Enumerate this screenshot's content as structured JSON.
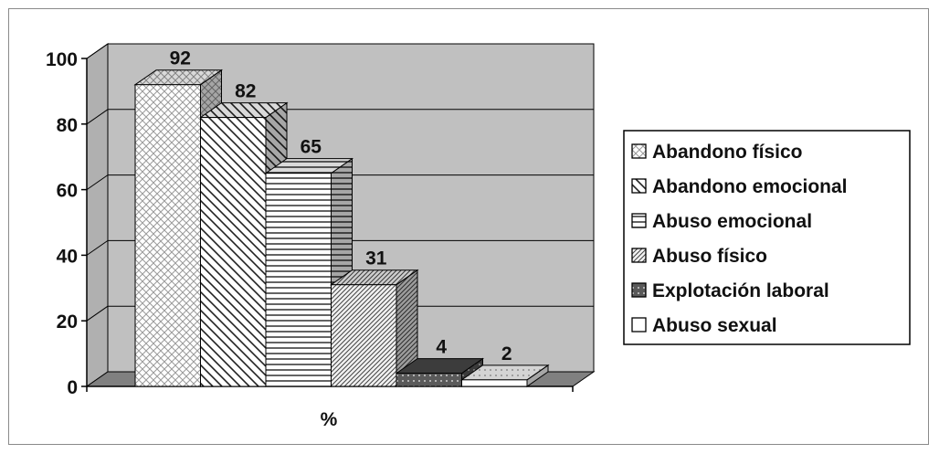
{
  "chart_data": {
    "type": "bar",
    "categories": [
      "%"
    ],
    "series": [
      {
        "name": "Abandono físico",
        "values": [
          92
        ],
        "pattern": "crosshatch"
      },
      {
        "name": "Abandono emocional",
        "values": [
          82
        ],
        "pattern": "diag-down"
      },
      {
        "name": "Abuso emocional",
        "values": [
          65
        ],
        "pattern": "horizontal"
      },
      {
        "name": "Abuso físico",
        "values": [
          31
        ],
        "pattern": "diag-up-fine"
      },
      {
        "name": "Explotación laboral",
        "values": [
          4
        ],
        "pattern": "dark-dots"
      },
      {
        "name": "Abuso sexual",
        "values": [
          2
        ],
        "pattern": "solid-white"
      }
    ],
    "data_labels": [
      "92",
      "82",
      "65",
      "31",
      "4",
      "2"
    ],
    "xlabel": "%",
    "ylabel": "",
    "ylim": [
      0,
      100
    ],
    "yticks": [
      "0",
      "20",
      "40",
      "60",
      "80",
      "100"
    ],
    "grid": true,
    "three_d": true,
    "legend_position": "right",
    "colors": {
      "plot_back": "#c0c0c0",
      "floor": "#808080",
      "grid": "#000000"
    }
  }
}
